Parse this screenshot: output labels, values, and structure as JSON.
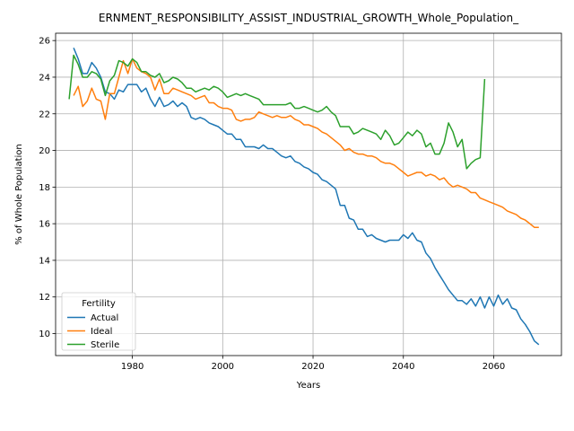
{
  "chart_data": {
    "type": "line",
    "title": "ERNMENT_RESPONSIBILITY_ASSIST_INDUSTRIAL_GROWTH_Whole_Population_",
    "xlabel": "Years",
    "ylabel": "% of Whole Population",
    "xlim": [
      1963,
      2075
    ],
    "ylim": [
      8.8,
      26.4
    ],
    "xticks": [
      1980,
      2000,
      2020,
      2040,
      2060
    ],
    "yticks": [
      10,
      12,
      14,
      16,
      18,
      20,
      22,
      24,
      26
    ],
    "grid": true,
    "legend": {
      "title": "Fertility",
      "position": "lower-left"
    },
    "series": [
      {
        "name": "Actual",
        "color": "#1f77b4",
        "x": [
          1967,
          1968,
          1969,
          1970,
          1971,
          1972,
          1973,
          1974,
          1975,
          1976,
          1977,
          1978,
          1979,
          1980,
          1981,
          1982,
          1983,
          1984,
          1985,
          1986,
          1987,
          1988,
          1989,
          1990,
          1991,
          1992,
          1993,
          1994,
          1995,
          1996,
          1997,
          1998,
          1999,
          2000,
          2001,
          2002,
          2003,
          2004,
          2005,
          2006,
          2007,
          2008,
          2009,
          2010,
          2011,
          2012,
          2013,
          2014,
          2015,
          2016,
          2017,
          2018,
          2019,
          2020,
          2021,
          2022,
          2023,
          2024,
          2025,
          2026,
          2027,
          2028,
          2029,
          2030,
          2031,
          2032,
          2033,
          2034,
          2035,
          2036,
          2037,
          2038,
          2039,
          2040,
          2041,
          2042,
          2043,
          2044,
          2045,
          2046,
          2047,
          2048,
          2049,
          2050,
          2051,
          2052,
          2053,
          2054,
          2055,
          2056,
          2057,
          2058,
          2059,
          2060,
          2061,
          2062,
          2063,
          2064,
          2065,
          2066,
          2067,
          2068,
          2069,
          2070
        ],
        "values": [
          25.6,
          25.0,
          24.2,
          24.2,
          24.8,
          24.5,
          24.0,
          23.2,
          23.1,
          22.8,
          23.3,
          23.2,
          23.6,
          23.6,
          23.6,
          23.2,
          23.4,
          22.8,
          22.4,
          22.9,
          22.4,
          22.5,
          22.7,
          22.4,
          22.6,
          22.4,
          21.8,
          21.7,
          21.8,
          21.7,
          21.5,
          21.4,
          21.3,
          21.1,
          20.9,
          20.9,
          20.6,
          20.6,
          20.2,
          20.2,
          20.2,
          20.1,
          20.3,
          20.1,
          20.1,
          19.9,
          19.7,
          19.6,
          19.7,
          19.4,
          19.3,
          19.1,
          19.0,
          18.8,
          18.7,
          18.4,
          18.3,
          18.1,
          17.9,
          17.0,
          17.0,
          16.3,
          16.2,
          15.7,
          15.7,
          15.3,
          15.4,
          15.2,
          15.1,
          15.0,
          15.1,
          15.1,
          15.1,
          15.4,
          15.2,
          15.5,
          15.1,
          15.0,
          14.4,
          14.1,
          13.6,
          13.2,
          12.8,
          12.4,
          12.1,
          11.8,
          11.8,
          11.6,
          11.9,
          11.5,
          12.0,
          11.4,
          12.0,
          11.5,
          12.1,
          11.6,
          11.9,
          11.4,
          11.3,
          10.8,
          10.5,
          10.1,
          9.6,
          9.4
        ]
      },
      {
        "name": "Ideal",
        "color": "#ff7f0e",
        "x": [
          1967,
          1968,
          1969,
          1970,
          1971,
          1972,
          1973,
          1974,
          1975,
          1976,
          1977,
          1978,
          1979,
          1980,
          1981,
          1982,
          1983,
          1984,
          1985,
          1986,
          1987,
          1988,
          1989,
          1990,
          1991,
          1992,
          1993,
          1994,
          1995,
          1996,
          1997,
          1998,
          1999,
          2000,
          2001,
          2002,
          2003,
          2004,
          2005,
          2006,
          2007,
          2008,
          2009,
          2010,
          2011,
          2012,
          2013,
          2014,
          2015,
          2016,
          2017,
          2018,
          2019,
          2020,
          2021,
          2022,
          2023,
          2024,
          2025,
          2026,
          2027,
          2028,
          2029,
          2030,
          2031,
          2032,
          2033,
          2034,
          2035,
          2036,
          2037,
          2038,
          2039,
          2040,
          2041,
          2042,
          2043,
          2044,
          2045,
          2046,
          2047,
          2048,
          2049,
          2050,
          2051,
          2052,
          2053,
          2054,
          2055,
          2056,
          2057,
          2058,
          2059,
          2060,
          2061,
          2062,
          2063,
          2064,
          2065,
          2066,
          2067,
          2068,
          2069,
          2070
        ],
        "values": [
          23.0,
          23.5,
          22.4,
          22.7,
          23.4,
          22.8,
          22.7,
          21.7,
          23.1,
          23.1,
          24.0,
          24.9,
          24.2,
          25.0,
          24.5,
          24.3,
          24.2,
          24.0,
          23.3,
          23.9,
          23.1,
          23.1,
          23.4,
          23.3,
          23.2,
          23.1,
          23.0,
          22.8,
          22.9,
          23.0,
          22.6,
          22.6,
          22.4,
          22.3,
          22.3,
          22.2,
          21.7,
          21.6,
          21.7,
          21.7,
          21.8,
          22.1,
          22.0,
          21.9,
          21.8,
          21.9,
          21.8,
          21.8,
          21.9,
          21.7,
          21.6,
          21.4,
          21.4,
          21.3,
          21.2,
          21.0,
          20.9,
          20.7,
          20.5,
          20.3,
          20.0,
          20.1,
          19.9,
          19.8,
          19.8,
          19.7,
          19.7,
          19.6,
          19.4,
          19.3,
          19.3,
          19.2,
          19.0,
          18.8,
          18.6,
          18.7,
          18.8,
          18.8,
          18.6,
          18.7,
          18.6,
          18.4,
          18.5,
          18.2,
          18.0,
          18.1,
          18.0,
          17.9,
          17.7,
          17.7,
          17.4,
          17.3,
          17.2,
          17.1,
          17.0,
          16.9,
          16.7,
          16.6,
          16.5,
          16.3,
          16.2,
          16.0,
          15.8,
          15.8
        ]
      },
      {
        "name": "Sterile",
        "color": "#2ca02c",
        "x": [
          1966,
          1967,
          1968,
          1969,
          1970,
          1971,
          1972,
          1973,
          1974,
          1975,
          1976,
          1977,
          1978,
          1979,
          1980,
          1981,
          1982,
          1983,
          1984,
          1985,
          1986,
          1987,
          1988,
          1989,
          1990,
          1991,
          1992,
          1993,
          1994,
          1995,
          1996,
          1997,
          1998,
          1999,
          2000,
          2001,
          2002,
          2003,
          2004,
          2005,
          2006,
          2007,
          2008,
          2009,
          2010,
          2011,
          2012,
          2013,
          2014,
          2015,
          2016,
          2017,
          2018,
          2019,
          2020,
          2021,
          2022,
          2023,
          2024,
          2025,
          2026,
          2027,
          2028,
          2029,
          2030,
          2031,
          2032,
          2033,
          2034,
          2035,
          2036,
          2037,
          2038,
          2039,
          2040,
          2041,
          2042,
          2043,
          2044,
          2045,
          2046,
          2047,
          2048,
          2049,
          2050,
          2051,
          2052,
          2053,
          2054,
          2055,
          2056,
          2057,
          2058
        ],
        "values": [
          22.8,
          25.2,
          24.7,
          24.0,
          24.0,
          24.3,
          24.2,
          23.9,
          23.0,
          23.8,
          24.1,
          24.9,
          24.8,
          24.6,
          25.0,
          24.8,
          24.3,
          24.3,
          24.1,
          24.0,
          24.2,
          23.7,
          23.8,
          24.0,
          23.9,
          23.7,
          23.4,
          23.4,
          23.2,
          23.3,
          23.4,
          23.3,
          23.5,
          23.4,
          23.2,
          22.9,
          23.0,
          23.1,
          23.0,
          23.1,
          23.0,
          22.9,
          22.8,
          22.5,
          22.5,
          22.5,
          22.5,
          22.5,
          22.5,
          22.6,
          22.3,
          22.3,
          22.4,
          22.3,
          22.2,
          22.1,
          22.2,
          22.4,
          22.1,
          21.9,
          21.3,
          21.3,
          21.3,
          20.9,
          21.0,
          21.2,
          21.1,
          21.0,
          20.9,
          20.6,
          21.1,
          20.8,
          20.3,
          20.4,
          20.7,
          21.0,
          20.8,
          21.1,
          20.9,
          20.2,
          20.4,
          19.8,
          19.8,
          20.4,
          21.5,
          21.0,
          20.2,
          20.6,
          19.0,
          19.3,
          19.5,
          19.6,
          23.9
        ]
      }
    ]
  }
}
